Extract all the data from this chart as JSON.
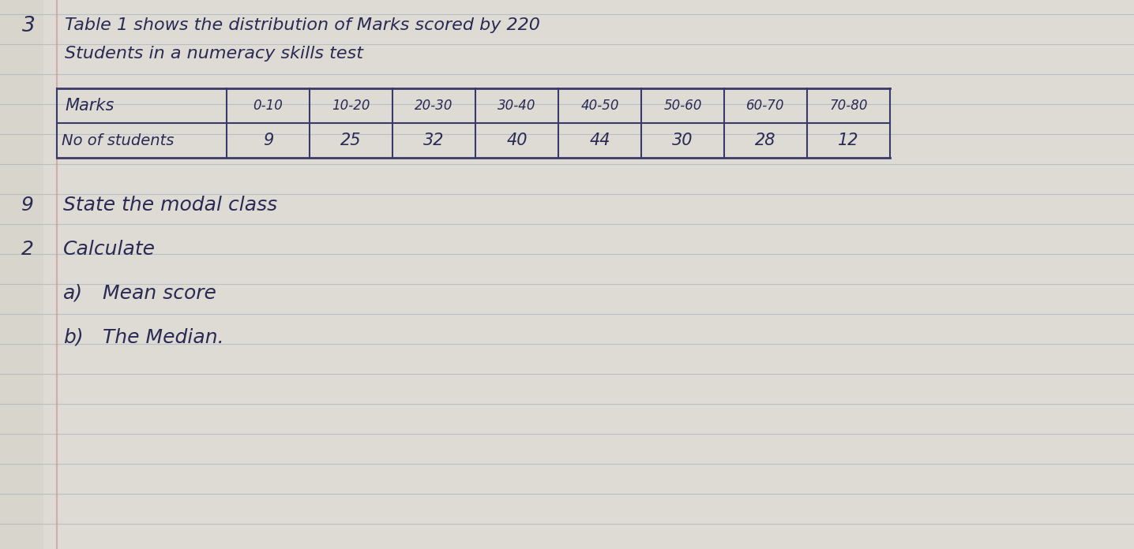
{
  "title_line1": "Table 1 shows the distribution of Marks scored by 220",
  "title_line2": "Students in a numeracy skills test",
  "table_col0_header": "Marks",
  "table_col0_row1": "No of students",
  "marks_headers": [
    "0-10",
    "10-20",
    "20-30",
    "30-40",
    "40-50",
    "50-60",
    "60-70",
    "70-80"
  ],
  "row1_values": [
    "9",
    "25",
    "32",
    "40",
    "44",
    "30",
    "28",
    "12"
  ],
  "page_number": "3",
  "bg_color": "#d8d5cc",
  "paper_color": "#e8e6e0",
  "line_color": "#9aabb8",
  "table_line_color": "#3a3a6a",
  "text_color": "#2a2a55",
  "margin_line_color": "#cc9999",
  "q1_num": "9",
  "q1_text": "State the modal class",
  "q2_num": "2",
  "q2_text": "Calculate",
  "qa_label": "a)",
  "qa_text": "Mean score",
  "qb_label": "b)",
  "qb_text": "The Median."
}
